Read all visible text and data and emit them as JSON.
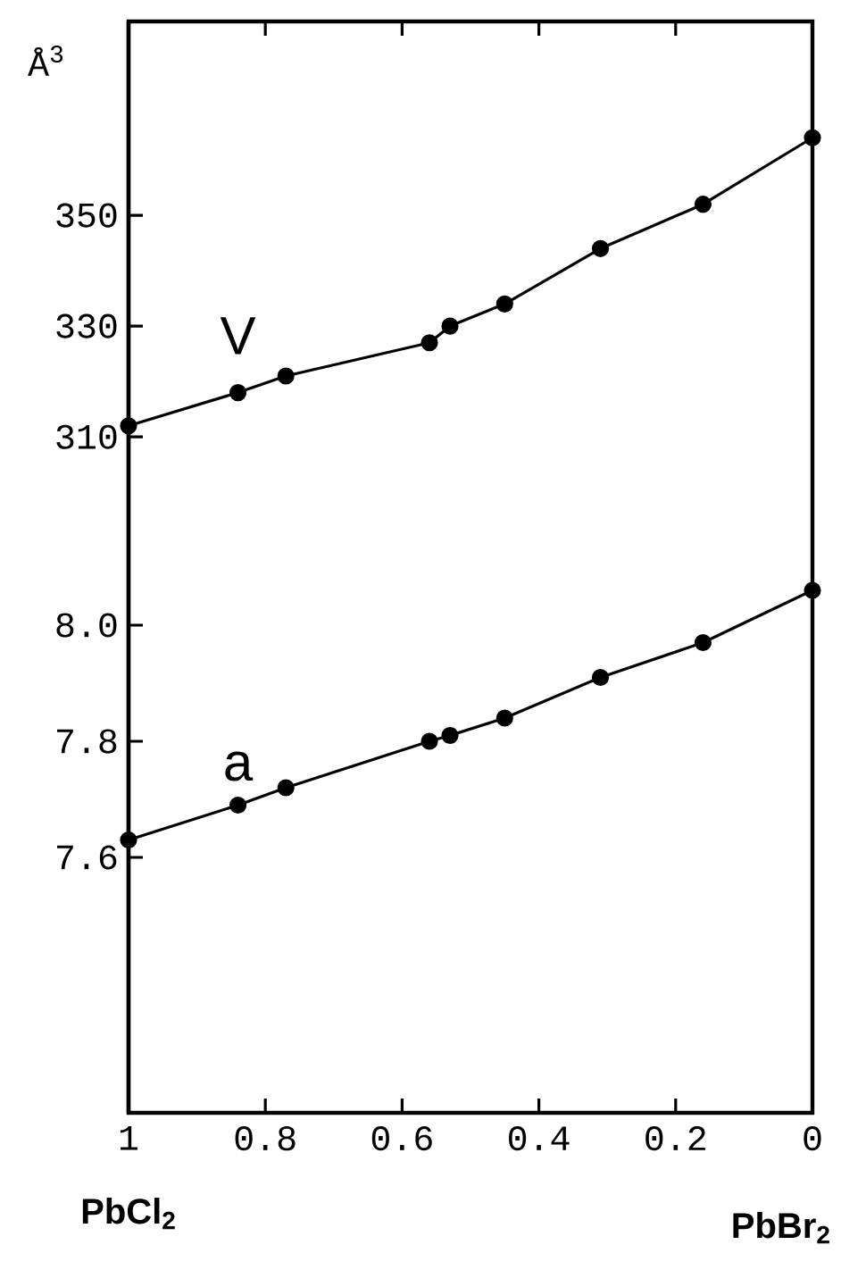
{
  "chart_data": {
    "type": "line",
    "ylabel": "Å$^{3}$",
    "annotations": [
      "PbCl$_{2}$",
      "PbBr$_{2}$"
    ],
    "x": [
      1,
      0.84,
      0.77,
      0.56,
      0.53,
      0.45,
      0.31,
      0.16,
      0
    ],
    "xlim": [
      1,
      0
    ],
    "xticks": [
      1,
      0.8,
      0.6,
      0.4,
      0.2,
      0
    ],
    "ylim": [
      188,
      385
    ],
    "yticks": [
      310,
      330,
      350
    ],
    "y2lim": [
      7.16,
      9.04
    ],
    "y2ticks": [
      7.6,
      7.8,
      {
        "value": 8,
        "label": "8.0"
      }
    ],
    "marker": "circle",
    "line_style": "solid",
    "series": [
      {
        "name": "V",
        "color": "#000000",
        "values": [
          312,
          318,
          321,
          327,
          330,
          334,
          344,
          352,
          364
        ]
      },
      {
        "name": "a",
        "color": "#000000",
        "axis": "y2",
        "values": [
          7.63,
          7.69,
          7.72,
          7.8,
          7.81,
          7.84,
          7.91,
          7.97,
          8.06
        ]
      }
    ]
  }
}
